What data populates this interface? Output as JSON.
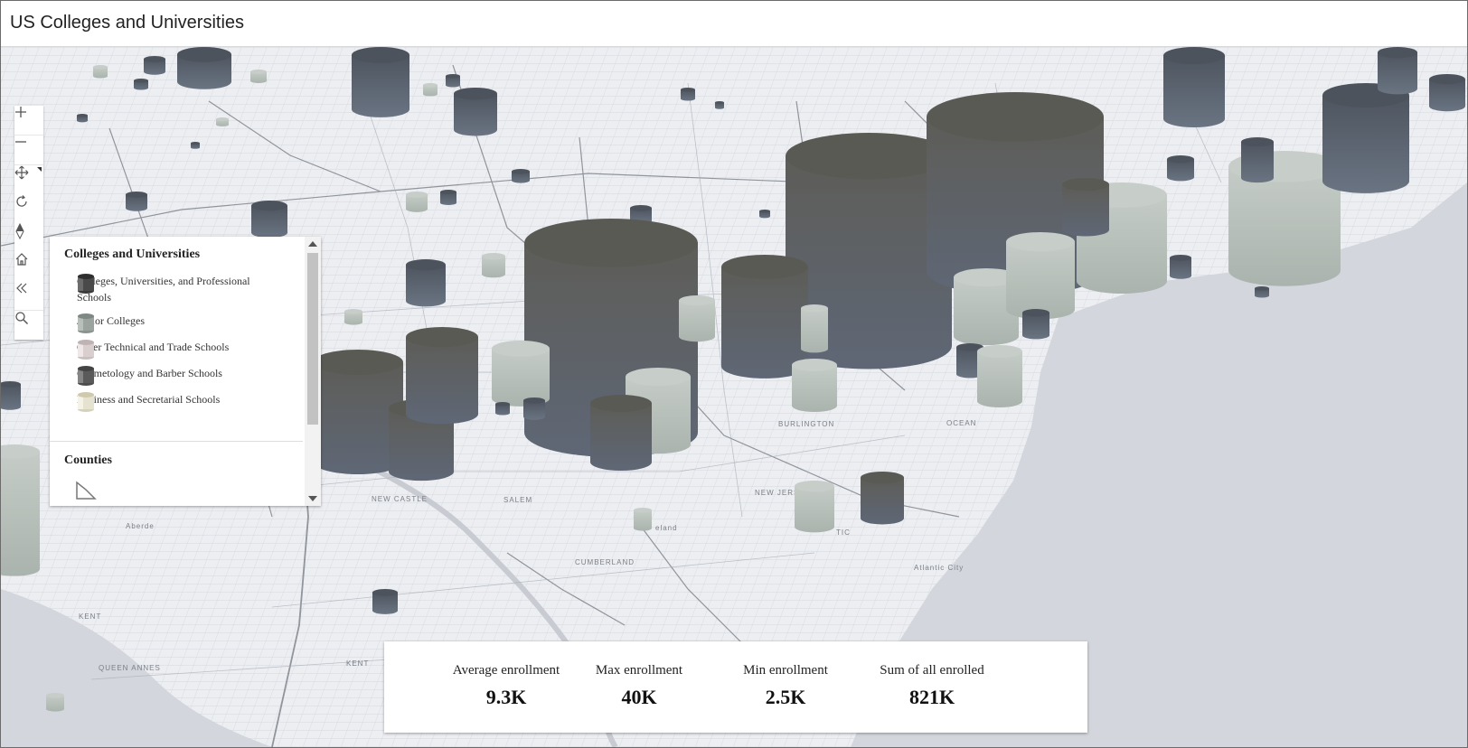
{
  "app": {
    "title": "US Colleges and Universities"
  },
  "navigation": {
    "buttons": [
      {
        "name": "zoom-in",
        "icon": "plus-icon"
      },
      {
        "name": "zoom-out",
        "icon": "minus-icon"
      },
      {
        "name": "pan",
        "icon": "move-icon"
      },
      {
        "name": "rotate",
        "icon": "rotate-icon"
      },
      {
        "name": "compass",
        "icon": "compass-icon"
      },
      {
        "name": "home",
        "icon": "home-icon"
      },
      {
        "name": "collapse",
        "icon": "double-chevron-left-icon"
      },
      {
        "name": "search",
        "icon": "search-icon"
      }
    ]
  },
  "legend": {
    "layer_title": "Colleges and Universities",
    "items": [
      {
        "label": "Colleges, Universities, and Professional Schools",
        "color": "#4a4a4a"
      },
      {
        "label": "Junior Colleges",
        "color": "#9aa39e"
      },
      {
        "label": "Other Technical and Trade Schools",
        "color": "#d9cfcf"
      },
      {
        "label": "Cosmetology and Barber Schools",
        "color": "#5a5a5a"
      },
      {
        "label": "Business and Secretarial Schools",
        "color": "#e6e2d0"
      }
    ],
    "counties_title": "Counties"
  },
  "map_labels": {
    "burlington": "BURLINGTON",
    "new_jersey": "NEW JERSEY",
    "cumberland": "CUMBERLAND",
    "salem": "SALEM",
    "ocean": "OCEAN",
    "kent": "KENT",
    "queen_annes": "QUEEN\nANNES",
    "kent2": "KENT",
    "atlantic_city": "Atlantic City",
    "new_castle": "NEW\nCASTLE",
    "vineland": "eland",
    "aberdeen": "Aberde",
    "tic": "TIC"
  },
  "stats": [
    {
      "label": "Average enrollment",
      "value": "9.3K"
    },
    {
      "label": "Max enrollment",
      "value": "40K"
    },
    {
      "label": "Min enrollment",
      "value": "2.5K"
    },
    {
      "label": "Sum of all enrolled",
      "value": "821K"
    }
  ],
  "colors": {
    "dark_cylinder": "#5b5c58",
    "blue_grey_cylinder": "#606a78",
    "light_cylinder": "#aeb7b1",
    "land": "#eceef2",
    "water": "#d3d6dc"
  }
}
